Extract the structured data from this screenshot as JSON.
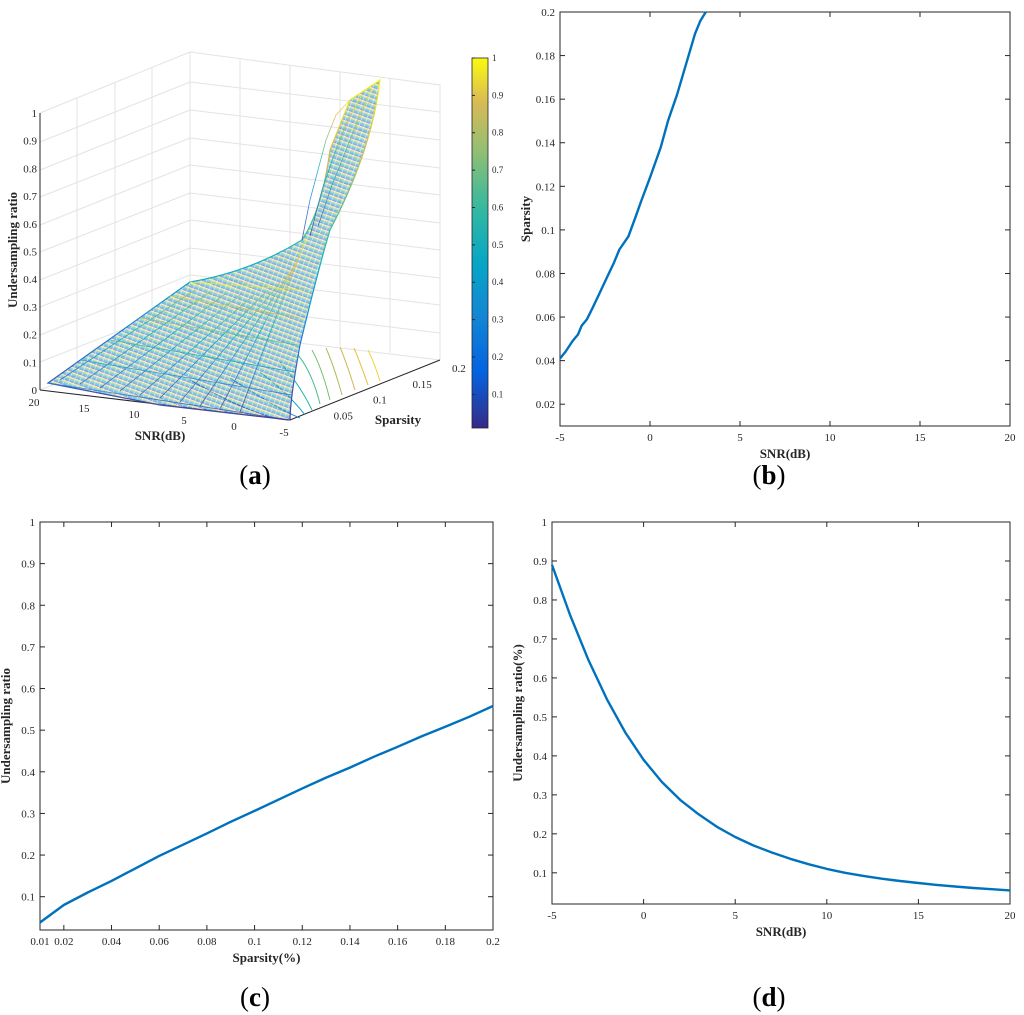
{
  "chart_data": [
    {
      "panel": "a",
      "type": "surface",
      "xlabel": "SNR(dB)",
      "ylabel": "Sparsity",
      "zlabel": "Undersampling ratio",
      "x_ticks": [
        "20",
        "15",
        "10",
        "5",
        "0",
        "-5"
      ],
      "y_ticks": [
        "0.05",
        "0.1",
        "0.15",
        "0.2"
      ],
      "z_ticks": [
        "0",
        "0.1",
        "0.2",
        "0.3",
        "0.4",
        "0.5",
        "0.6",
        "0.7",
        "0.8",
        "0.9",
        "1"
      ],
      "xlim": [
        -5,
        20
      ],
      "ylim": [
        0.01,
        0.2
      ],
      "zlim": [
        0,
        1
      ],
      "colormap": "parula",
      "colorbar_ticks": [
        "0.1",
        "0.2",
        "0.3",
        "0.4",
        "0.5",
        "0.6",
        "0.7",
        "0.8",
        "0.9",
        "1"
      ],
      "contour_projection": true,
      "grid": true
    },
    {
      "panel": "b",
      "type": "line",
      "xlabel": "SNR(dB)",
      "ylabel": "Sparsity",
      "xlim": [
        -5,
        20
      ],
      "ylim": [
        0.01,
        0.2
      ],
      "x_ticks": [
        "-5",
        "0",
        "5",
        "10",
        "15",
        "20"
      ],
      "y_ticks": [
        "0.02",
        "0.04",
        "0.06",
        "0.08",
        "0.1",
        "0.12",
        "0.14",
        "0.16",
        "0.18",
        "0.2"
      ],
      "color": "#0072BD",
      "series": [
        {
          "x": [
            -5,
            -4.7,
            -4.3,
            -4,
            -3.8,
            -3.5,
            -3.2,
            -2.8,
            -2.4,
            -2,
            -1.7,
            -1.2,
            -0.8,
            -0.5,
            0,
            0.6,
            1,
            1.5,
            2,
            2.5,
            2.8,
            3.1
          ],
          "y": [
            0.041,
            0.044,
            0.049,
            0.052,
            0.056,
            0.059,
            0.064,
            0.071,
            0.078,
            0.085,
            0.091,
            0.097,
            0.106,
            0.113,
            0.124,
            0.138,
            0.15,
            0.162,
            0.176,
            0.19,
            0.196,
            0.2
          ]
        }
      ]
    },
    {
      "panel": "c",
      "type": "line",
      "xlabel": "Sparsity(%)",
      "ylabel": "Undersampling ratio",
      "xlim": [
        0.01,
        0.2
      ],
      "ylim": [
        0.02,
        1
      ],
      "x_ticks": [
        "0.01",
        "0.02",
        "0.04",
        "0.06",
        "0.08",
        "0.1",
        "0.12",
        "0.14",
        "0.16",
        "0.18",
        "0.2"
      ],
      "y_ticks": [
        "0.1",
        "0.2",
        "0.3",
        "0.4",
        "0.5",
        "0.6",
        "0.7",
        "0.8",
        "0.9",
        "1"
      ],
      "color": "#0072BD",
      "series": [
        {
          "x": [
            0.01,
            0.02,
            0.03,
            0.04,
            0.05,
            0.06,
            0.07,
            0.08,
            0.09,
            0.1,
            0.11,
            0.12,
            0.13,
            0.14,
            0.15,
            0.16,
            0.17,
            0.18,
            0.19,
            0.2
          ],
          "y": [
            0.038,
            0.08,
            0.11,
            0.138,
            0.168,
            0.198,
            0.225,
            0.252,
            0.28,
            0.306,
            0.333,
            0.36,
            0.386,
            0.41,
            0.436,
            0.46,
            0.485,
            0.508,
            0.532,
            0.558
          ]
        }
      ]
    },
    {
      "panel": "d",
      "type": "line",
      "xlabel": "SNR(dB)",
      "ylabel": "Undersampling ratio(%)",
      "xlim": [
        -5,
        20
      ],
      "ylim": [
        0.02,
        1
      ],
      "x_ticks": [
        "-5",
        "0",
        "5",
        "10",
        "15",
        "20"
      ],
      "y_ticks": [
        "0.1",
        "0.2",
        "0.3",
        "0.4",
        "0.5",
        "0.6",
        "0.7",
        "0.8",
        "0.9",
        "1"
      ],
      "color": "#0072BD",
      "series": [
        {
          "x": [
            -5,
            -4,
            -3,
            -2,
            -1,
            0,
            1,
            2,
            3,
            4,
            5,
            6,
            7,
            8,
            9,
            10,
            11,
            12,
            13,
            14,
            15,
            16,
            17,
            18,
            19,
            20
          ],
          "y": [
            0.89,
            0.76,
            0.645,
            0.545,
            0.46,
            0.39,
            0.333,
            0.287,
            0.25,
            0.218,
            0.192,
            0.17,
            0.152,
            0.136,
            0.122,
            0.11,
            0.1,
            0.092,
            0.085,
            0.079,
            0.074,
            0.069,
            0.065,
            0.061,
            0.058,
            0.055
          ]
        }
      ]
    }
  ],
  "panel_labels": [
    "a",
    "b",
    "c",
    "d"
  ]
}
